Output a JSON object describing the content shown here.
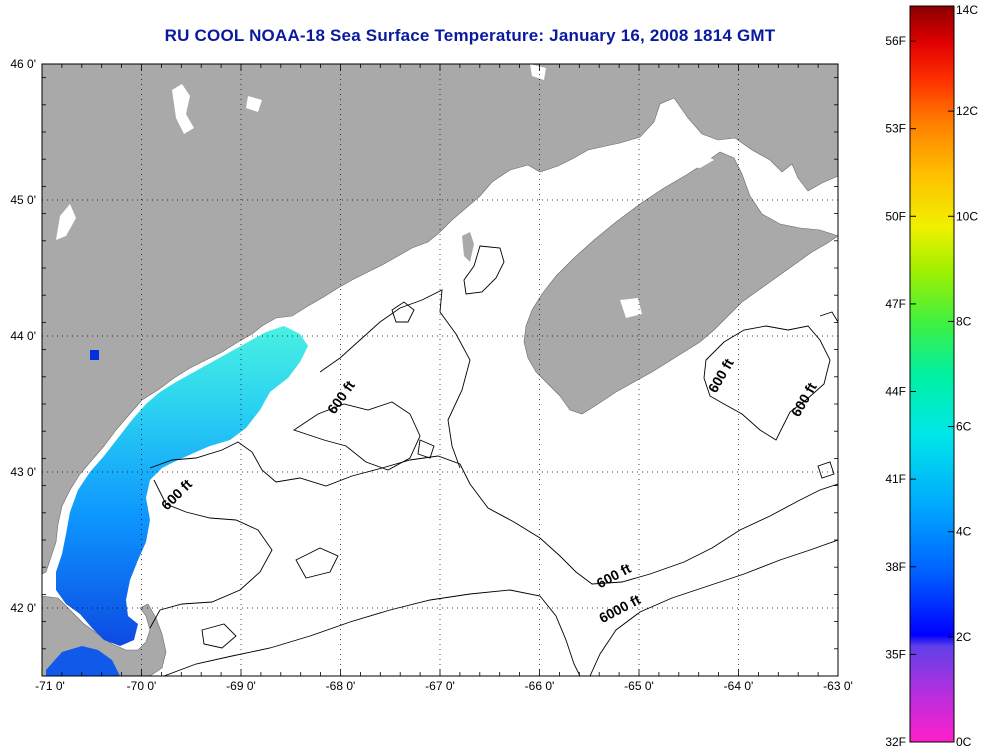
{
  "title": "RU COOL  NOAA-18  Sea Surface Temperature:  January 16, 2008 1814 GMT",
  "map": {
    "longitude_ticks": [
      "-71 0'",
      "-70 0'",
      "-69 0'",
      "-68 0'",
      "-67 0'",
      "-66 0'",
      "-65 0'",
      "-64 0'",
      "-63 0'"
    ],
    "latitude_ticks": [
      "46 0'",
      "45 0'",
      "44 0'",
      "43 0'",
      "42 0'"
    ],
    "longitude_range": [
      -71,
      -63
    ],
    "latitude_range": [
      41.5,
      46
    ],
    "land_color": "#a9a9a9",
    "water_color": "#ffffff",
    "gridlines": "dotted",
    "contour_labels": [
      {
        "label": "600 ft",
        "angle": -55
      },
      {
        "label": "600 ft",
        "angle": -45
      },
      {
        "label": "600 ft",
        "angle": -60
      },
      {
        "label": "600 ft",
        "angle": -60
      },
      {
        "label": "600 ft",
        "angle": -28
      },
      {
        "label": "6000 ft",
        "angle": -28
      }
    ]
  },
  "colorbar": {
    "celsius_labels": [
      "14C",
      "12C",
      "10C",
      "8C",
      "6C",
      "4C",
      "2C",
      "0C"
    ],
    "fahrenheit_labels": [
      "56F",
      "53F",
      "50F",
      "47F",
      "44F",
      "41F",
      "38F",
      "35F",
      "32F"
    ],
    "colors": [
      "#ff20c8",
      "#b030e0",
      "#6040e8",
      "#0000ff",
      "#0060ff",
      "#00a8ff",
      "#00e8e8",
      "#00f0a0",
      "#40f040",
      "#a0f000",
      "#f0f000",
      "#ffc000",
      "#ff8000",
      "#ff3000",
      "#e00000",
      "#8a0000"
    ]
  }
}
